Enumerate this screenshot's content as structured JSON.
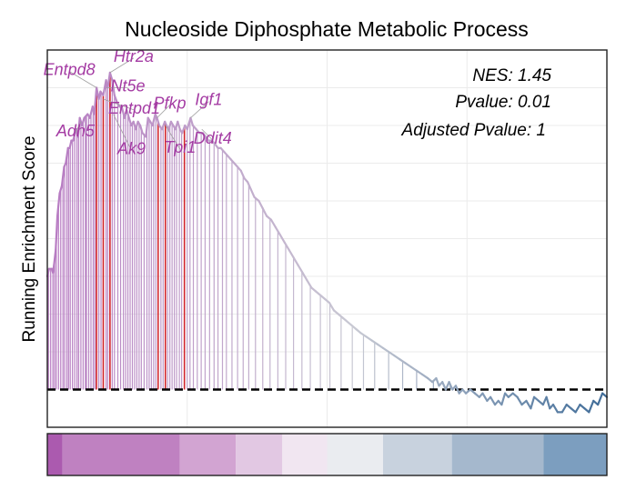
{
  "colors": {
    "line_start": "#b77ac2",
    "line_mid": "#c8c9d3",
    "line_end": "#3f6c98",
    "leading_edge_hit": "#d1262c",
    "hit": "#b06cbb",
    "label": "#a43ba3",
    "baseline": "#000000",
    "grid": "#ebebeb"
  },
  "chart_data": {
    "type": "line",
    "title": "Nucleoside Diphosphate Metabolic Process",
    "xlabel": "",
    "ylabel": "Running Enrichment Score",
    "xlim": [
      0,
      1000
    ],
    "ylim": [
      -0.1,
      0.9
    ],
    "baseline": 0,
    "grid": true,
    "stats": [
      "NES: 1.45",
      "Pvalue: 0.01",
      "Adjusted Pvalue: 1"
    ],
    "curve": [
      [
        0,
        0.3
      ],
      [
        3,
        0.32
      ],
      [
        8,
        0.32
      ],
      [
        10,
        0.31
      ],
      [
        12,
        0.33
      ],
      [
        15,
        0.37
      ],
      [
        18,
        0.46
      ],
      [
        22,
        0.52
      ],
      [
        26,
        0.54
      ],
      [
        30,
        0.59
      ],
      [
        33,
        0.6
      ],
      [
        37,
        0.64
      ],
      [
        40,
        0.64
      ],
      [
        43,
        0.66
      ],
      [
        46,
        0.66
      ],
      [
        52,
        0.69
      ],
      [
        55,
        0.67
      ],
      [
        58,
        0.72
      ],
      [
        62,
        0.7
      ],
      [
        66,
        0.72
      ],
      [
        72,
        0.73
      ],
      [
        76,
        0.72
      ],
      [
        81,
        0.75
      ],
      [
        84,
        0.73
      ],
      [
        88,
        0.8
      ],
      [
        92,
        0.77
      ],
      [
        95,
        0.79
      ],
      [
        100,
        0.78
      ],
      [
        105,
        0.82
      ],
      [
        108,
        0.8
      ],
      [
        112,
        0.84
      ],
      [
        116,
        0.82
      ],
      [
        120,
        0.78
      ],
      [
        125,
        0.76
      ],
      [
        129,
        0.75
      ],
      [
        133,
        0.75
      ],
      [
        138,
        0.72
      ],
      [
        142,
        0.74
      ],
      [
        146,
        0.72
      ],
      [
        150,
        0.7
      ],
      [
        154,
        0.71
      ],
      [
        158,
        0.69
      ],
      [
        162,
        0.71
      ],
      [
        166,
        0.7
      ],
      [
        170,
        0.68
      ],
      [
        176,
        0.67
      ],
      [
        180,
        0.72
      ],
      [
        184,
        0.71
      ],
      [
        188,
        0.7
      ],
      [
        193,
        0.73
      ],
      [
        196,
        0.72
      ],
      [
        200,
        0.7
      ],
      [
        205,
        0.69
      ],
      [
        210,
        0.71
      ],
      [
        213,
        0.7
      ],
      [
        217,
        0.69
      ],
      [
        221,
        0.71
      ],
      [
        225,
        0.7
      ],
      [
        229,
        0.69
      ],
      [
        233,
        0.71
      ],
      [
        237,
        0.69
      ],
      [
        241,
        0.68
      ],
      [
        246,
        0.7
      ],
      [
        250,
        0.69
      ],
      [
        256,
        0.72
      ],
      [
        260,
        0.7
      ],
      [
        266,
        0.69
      ],
      [
        272,
        0.68
      ],
      [
        278,
        0.68
      ],
      [
        283,
        0.67
      ],
      [
        288,
        0.66
      ],
      [
        294,
        0.66
      ],
      [
        300,
        0.65
      ],
      [
        305,
        0.64
      ],
      [
        310,
        0.64
      ],
      [
        316,
        0.63
      ],
      [
        322,
        0.62
      ],
      [
        328,
        0.61
      ],
      [
        334,
        0.6
      ],
      [
        340,
        0.59
      ],
      [
        346,
        0.58
      ],
      [
        352,
        0.56
      ],
      [
        358,
        0.55
      ],
      [
        364,
        0.53
      ],
      [
        370,
        0.51
      ],
      [
        378,
        0.5
      ],
      [
        385,
        0.48
      ],
      [
        392,
        0.46
      ],
      [
        400,
        0.45
      ],
      [
        408,
        0.43
      ],
      [
        416,
        0.41
      ],
      [
        424,
        0.39
      ],
      [
        432,
        0.37
      ],
      [
        440,
        0.35
      ],
      [
        448,
        0.33
      ],
      [
        456,
        0.31
      ],
      [
        464,
        0.29
      ],
      [
        472,
        0.27
      ],
      [
        480,
        0.26
      ],
      [
        488,
        0.25
      ],
      [
        496,
        0.24
      ],
      [
        504,
        0.23
      ],
      [
        512,
        0.21
      ],
      [
        520,
        0.2
      ],
      [
        528,
        0.19
      ],
      [
        536,
        0.18
      ],
      [
        544,
        0.17
      ],
      [
        552,
        0.16
      ],
      [
        560,
        0.15
      ],
      [
        570,
        0.14
      ],
      [
        580,
        0.13
      ],
      [
        590,
        0.12
      ],
      [
        600,
        0.11
      ],
      [
        610,
        0.1
      ],
      [
        620,
        0.09
      ],
      [
        630,
        0.08
      ],
      [
        640,
        0.07
      ],
      [
        650,
        0.06
      ],
      [
        660,
        0.05
      ],
      [
        670,
        0.04
      ],
      [
        680,
        0.03
      ],
      [
        688,
        0.02
      ],
      [
        695,
        0.03
      ],
      [
        700,
        0.01
      ],
      [
        706,
        0.02
      ],
      [
        712,
        0.0
      ],
      [
        718,
        0.02
      ],
      [
        724,
        0.0
      ],
      [
        730,
        0.01
      ],
      [
        736,
        -0.01
      ],
      [
        742,
        0.0
      ],
      [
        748,
        -0.01
      ],
      [
        756,
        0.0
      ],
      [
        764,
        -0.01
      ],
      [
        772,
        -0.02
      ],
      [
        778,
        -0.01
      ],
      [
        786,
        -0.03
      ],
      [
        792,
        -0.02
      ],
      [
        800,
        -0.04
      ],
      [
        806,
        -0.03
      ],
      [
        812,
        -0.04
      ],
      [
        818,
        -0.01
      ],
      [
        824,
        -0.02
      ],
      [
        832,
        -0.01
      ],
      [
        840,
        -0.02
      ],
      [
        848,
        -0.04
      ],
      [
        856,
        -0.03
      ],
      [
        864,
        -0.05
      ],
      [
        870,
        -0.02
      ],
      [
        878,
        -0.03
      ],
      [
        886,
        -0.04
      ],
      [
        892,
        -0.02
      ],
      [
        898,
        -0.05
      ],
      [
        904,
        -0.04
      ],
      [
        912,
        -0.06
      ],
      [
        920,
        -0.06
      ],
      [
        928,
        -0.04
      ],
      [
        936,
        -0.05
      ],
      [
        944,
        -0.06
      ],
      [
        952,
        -0.04
      ],
      [
        960,
        -0.05
      ],
      [
        968,
        -0.06
      ],
      [
        976,
        -0.03
      ],
      [
        984,
        -0.04
      ],
      [
        992,
        -0.01
      ],
      [
        1000,
        -0.02
      ]
    ],
    "hit_positions": [
      0,
      2,
      6,
      10,
      13,
      16,
      20,
      24,
      28,
      31,
      35,
      38,
      41,
      45,
      49,
      53,
      56,
      60,
      64,
      68,
      70,
      74,
      78,
      82,
      85,
      88,
      92,
      96,
      100,
      105,
      108,
      112,
      116,
      120,
      126,
      131,
      136,
      140,
      144,
      148,
      152,
      156,
      160,
      164,
      168,
      173,
      178,
      182,
      186,
      190,
      194,
      198,
      203,
      207,
      211,
      215,
      219,
      223,
      227,
      231,
      236,
      240,
      245,
      250,
      255,
      261,
      268,
      275,
      282,
      290,
      298,
      305,
      313,
      320,
      330,
      340,
      350,
      360,
      372,
      385,
      398,
      412,
      426,
      440,
      455,
      470,
      488,
      505,
      525,
      545,
      565,
      585,
      610,
      635,
      660,
      690,
      720,
      752,
      788,
      825,
      868,
      918,
      965
    ],
    "leading_edge_positions": [
      88,
      100,
      112,
      198,
      211,
      245
    ],
    "gene_labels": [
      {
        "text": "Entpd8",
        "x": 88,
        "y": 0.8
      },
      {
        "text": "Htr2a",
        "x": 112,
        "y": 0.84
      },
      {
        "text": "Nt5e",
        "x": 105,
        "y": 0.8
      },
      {
        "text": "Adh5",
        "x": 60,
        "y": 0.71
      },
      {
        "text": "Entpd1",
        "x": 100,
        "y": 0.77
      },
      {
        "text": "Ak9",
        "x": 118,
        "y": 0.73
      },
      {
        "text": "Pfkp",
        "x": 196,
        "y": 0.72
      },
      {
        "text": "Igf1",
        "x": 256,
        "y": 0.72
      },
      {
        "text": "Tpi1",
        "x": 211,
        "y": 0.7
      },
      {
        "text": "Ddit4",
        "x": 276,
        "y": 0.69
      }
    ],
    "colorbar": [
      {
        "from": 0,
        "to": 27,
        "color": "#ab5aaf"
      },
      {
        "from": 27,
        "to": 237,
        "color": "#bf81c1"
      },
      {
        "from": 237,
        "to": 337,
        "color": "#d2a4d2"
      },
      {
        "from": 337,
        "to": 420,
        "color": "#e2c8e3"
      },
      {
        "from": 420,
        "to": 500,
        "color": "#f1e6f1"
      },
      {
        "from": 500,
        "to": 600,
        "color": "#eaecf0"
      },
      {
        "from": 600,
        "to": 723,
        "color": "#c8d2de"
      },
      {
        "from": 723,
        "to": 887,
        "color": "#a5b8cd"
      },
      {
        "from": 887,
        "to": 1000,
        "color": "#7c9ebf"
      }
    ]
  }
}
